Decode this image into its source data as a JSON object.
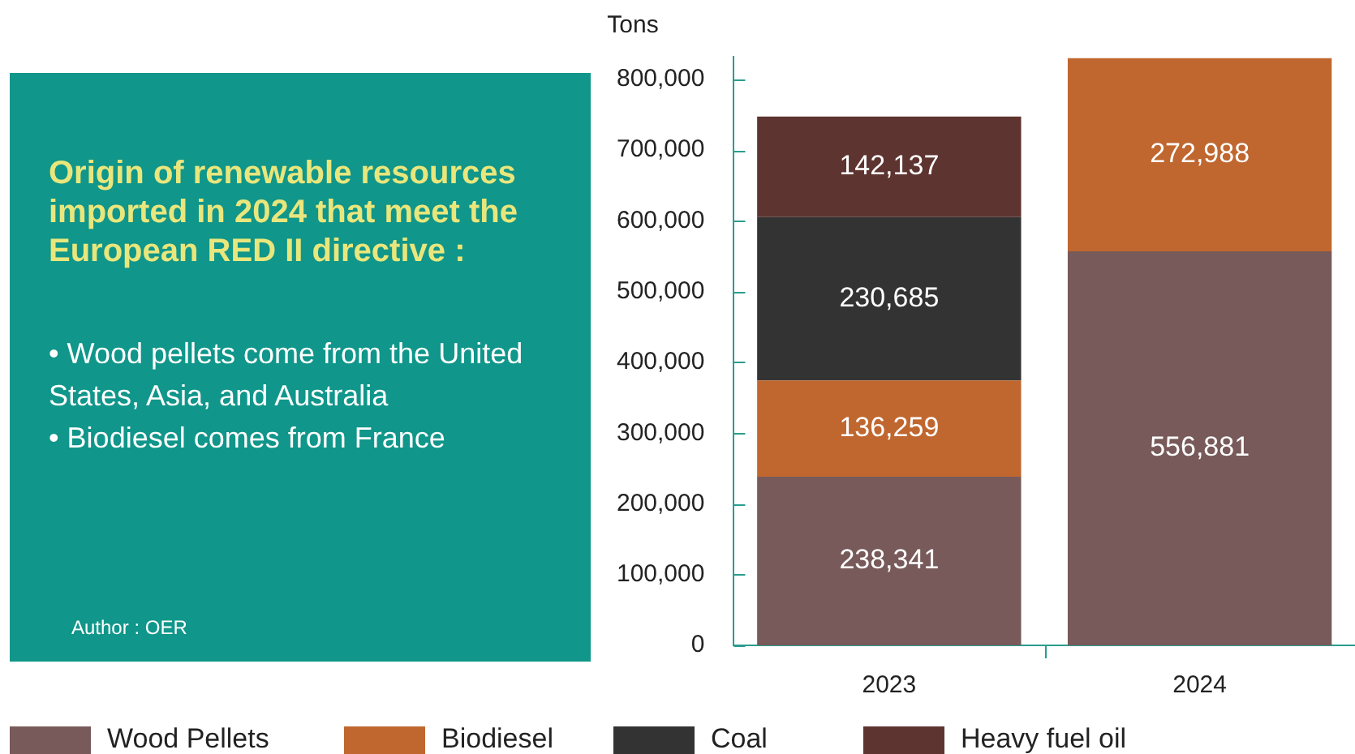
{
  "chart_data": {
    "type": "bar",
    "title": "Origin of renewable resources imported in 2024 that meet the European RED II directive :",
    "ylabel": "Tons",
    "annotations": [
      "• Wood pellets come from the United States, Asia, and Australia",
      "• Biodiesel comes from France",
      "Author : OER"
    ],
    "categories": [
      "2023",
      "2024"
    ],
    "stacked": true,
    "series": [
      {
        "name": "Wood Pellets",
        "color": "#775a59",
        "values": [
          238341,
          556881
        ],
        "value_labels": [
          "238,341",
          "556,881"
        ]
      },
      {
        "name": "Biodiesel",
        "color": "#c0672f",
        "values": [
          136259,
          272988
        ],
        "value_labels": [
          "136,259",
          "272,988"
        ]
      },
      {
        "name": "Coal",
        "color": "#333333",
        "values": [
          230685,
          null
        ],
        "value_labels": [
          "230,685",
          null
        ]
      },
      {
        "name": "Heavy fuel oil",
        "color": "#5e3430",
        "values": [
          142137,
          null
        ],
        "value_labels": [
          "142,137",
          null
        ]
      }
    ],
    "ylim": [
      0,
      832000
    ],
    "yticks": [
      0,
      {
        "value": 100000,
        "label": "100,000"
      },
      {
        "value": 200000,
        "label": "200,000"
      },
      {
        "value": 300000,
        "label": "300,000"
      },
      {
        "value": 400000,
        "label": "400,000"
      },
      {
        "value": 500000,
        "label": "500,000"
      },
      {
        "value": 600000,
        "label": "600,000"
      },
      {
        "value": 700000,
        "label": "700,000"
      },
      {
        "value": 800000,
        "label": "800,000"
      }
    ],
    "legend": "bottom"
  }
}
